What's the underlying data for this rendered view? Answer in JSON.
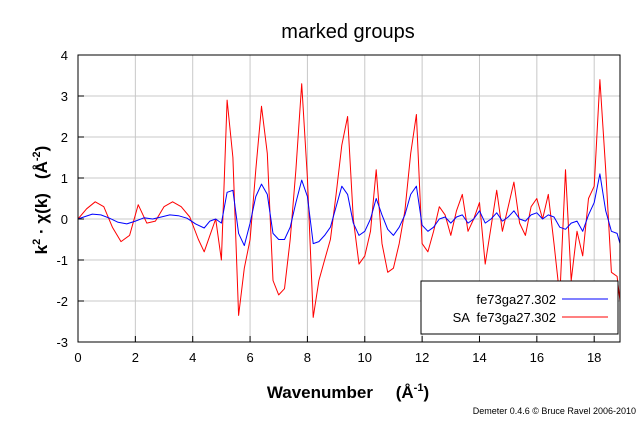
{
  "chart_data": {
    "type": "line",
    "title": "marked groups",
    "xlabel_text": "Wavenumber",
    "xlabel_unit": "(Å",
    "xlabel_unit_sup": "-1",
    "ylabel_k": "k",
    "ylabel_k_sup": "2",
    "ylabel_chi": " · χ(k)",
    "ylabel_unit": "(Å",
    "ylabel_unit_sup": "-2",
    "xlim": [
      0,
      18.9
    ],
    "ylim": [
      -3,
      4
    ],
    "xticks": [
      0,
      2,
      4,
      6,
      8,
      10,
      12,
      14,
      16,
      18
    ],
    "xtick_labels": [
      "0",
      "2",
      "4",
      "6",
      "8",
      "10",
      "12",
      "14",
      "16",
      "18"
    ],
    "yticks": [
      -3,
      -2,
      -1,
      0,
      1,
      2,
      3,
      4
    ],
    "ytick_labels": [
      "-3",
      "-2",
      "-1",
      "0",
      "1",
      "2",
      "3",
      "4"
    ],
    "grid": true,
    "legend_position": "bottom-right",
    "credit": "Demeter 0.4.6 © Bruce Ravel 2006-2010",
    "series": [
      {
        "name": "fe73ga27.302",
        "color": "#0000ff",
        "x": [
          0,
          0.2,
          0.5,
          0.8,
          1.1,
          1.4,
          1.7,
          2.0,
          2.3,
          2.6,
          2.9,
          3.2,
          3.5,
          3.8,
          4.1,
          4.4,
          4.6,
          4.8,
          5.0,
          5.2,
          5.4,
          5.6,
          5.8,
          6.0,
          6.2,
          6.4,
          6.6,
          6.8,
          7.0,
          7.2,
          7.4,
          7.6,
          7.8,
          8.0,
          8.2,
          8.4,
          8.6,
          8.8,
          9.0,
          9.2,
          9.4,
          9.6,
          9.8,
          10.0,
          10.2,
          10.4,
          10.6,
          10.8,
          11.0,
          11.2,
          11.4,
          11.6,
          11.8,
          12.0,
          12.2,
          12.4,
          12.6,
          12.8,
          13.0,
          13.2,
          13.4,
          13.6,
          13.8,
          14.0,
          14.2,
          14.4,
          14.6,
          14.8,
          15.0,
          15.2,
          15.4,
          15.6,
          15.8,
          16.0,
          16.2,
          16.4,
          16.6,
          16.8,
          17.0,
          17.2,
          17.4,
          17.6,
          17.8,
          18.0,
          18.2,
          18.4,
          18.6,
          18.8,
          18.9
        ],
        "y": [
          0.0,
          0.05,
          0.12,
          0.1,
          0.02,
          -0.08,
          -0.12,
          -0.05,
          0.03,
          0.0,
          0.05,
          0.1,
          0.08,
          0.02,
          -0.12,
          -0.22,
          -0.05,
          0.0,
          -0.1,
          0.65,
          0.7,
          -0.35,
          -0.65,
          -0.1,
          0.55,
          0.85,
          0.6,
          -0.35,
          -0.5,
          -0.5,
          -0.2,
          0.4,
          0.95,
          0.55,
          -0.6,
          -0.55,
          -0.4,
          -0.2,
          0.3,
          0.8,
          0.6,
          -0.1,
          -0.4,
          -0.3,
          0.0,
          0.5,
          0.1,
          -0.25,
          -0.4,
          -0.2,
          0.1,
          0.6,
          0.8,
          -0.15,
          -0.3,
          -0.2,
          0.0,
          0.05,
          -0.1,
          0.05,
          0.1,
          -0.1,
          0.0,
          0.2,
          -0.1,
          0.0,
          0.15,
          -0.05,
          0.05,
          0.2,
          0.0,
          -0.05,
          0.1,
          0.15,
          0.0,
          0.1,
          0.05,
          -0.2,
          -0.25,
          -0.1,
          -0.05,
          -0.3,
          0.1,
          0.4,
          1.1,
          0.2,
          -0.3,
          -0.35,
          -0.6
        ]
      },
      {
        "name": "SA  fe73ga27.302",
        "color": "#ff0000",
        "x": [
          0,
          0.3,
          0.6,
          0.9,
          1.2,
          1.5,
          1.8,
          2.1,
          2.4,
          2.7,
          3.0,
          3.3,
          3.6,
          3.9,
          4.2,
          4.4,
          4.6,
          4.8,
          5.0,
          5.2,
          5.4,
          5.6,
          5.8,
          6.0,
          6.2,
          6.4,
          6.6,
          6.8,
          7.0,
          7.2,
          7.4,
          7.6,
          7.8,
          8.0,
          8.2,
          8.4,
          8.6,
          8.8,
          9.0,
          9.2,
          9.4,
          9.6,
          9.8,
          10.0,
          10.2,
          10.4,
          10.6,
          10.8,
          11.0,
          11.2,
          11.4,
          11.6,
          11.8,
          12.0,
          12.2,
          12.4,
          12.6,
          12.8,
          13.0,
          13.2,
          13.4,
          13.6,
          13.8,
          14.0,
          14.2,
          14.4,
          14.6,
          14.8,
          15.0,
          15.2,
          15.4,
          15.6,
          15.8,
          16.0,
          16.2,
          16.4,
          16.6,
          16.8,
          17.0,
          17.2,
          17.4,
          17.6,
          17.8,
          18.0,
          18.2,
          18.4,
          18.6,
          18.8,
          18.9
        ],
        "y": [
          0.0,
          0.25,
          0.42,
          0.3,
          -0.2,
          -0.55,
          -0.4,
          0.35,
          -0.1,
          -0.05,
          0.3,
          0.42,
          0.3,
          0.05,
          -0.5,
          -0.8,
          -0.4,
          0.0,
          -1.0,
          2.9,
          1.5,
          -2.35,
          -1.2,
          -0.5,
          1.2,
          2.75,
          1.6,
          -1.5,
          -1.85,
          -1.7,
          -0.5,
          1.2,
          3.3,
          1.0,
          -2.4,
          -1.5,
          -1.0,
          -0.5,
          0.6,
          1.8,
          2.5,
          0.0,
          -1.1,
          -0.9,
          -0.3,
          1.2,
          -0.6,
          -1.3,
          -1.2,
          -0.6,
          0.2,
          1.6,
          2.55,
          -0.6,
          -0.8,
          -0.3,
          0.3,
          0.1,
          -0.4,
          0.2,
          0.6,
          -0.3,
          0.0,
          0.4,
          -1.1,
          -0.2,
          0.7,
          -0.3,
          0.3,
          0.9,
          -0.1,
          -0.4,
          0.3,
          0.5,
          0.0,
          0.6,
          -0.6,
          -1.9,
          1.2,
          -1.5,
          -0.3,
          -0.9,
          0.5,
          0.8,
          3.4,
          1.2,
          -1.3,
          -1.4,
          -2.0
        ]
      }
    ]
  }
}
